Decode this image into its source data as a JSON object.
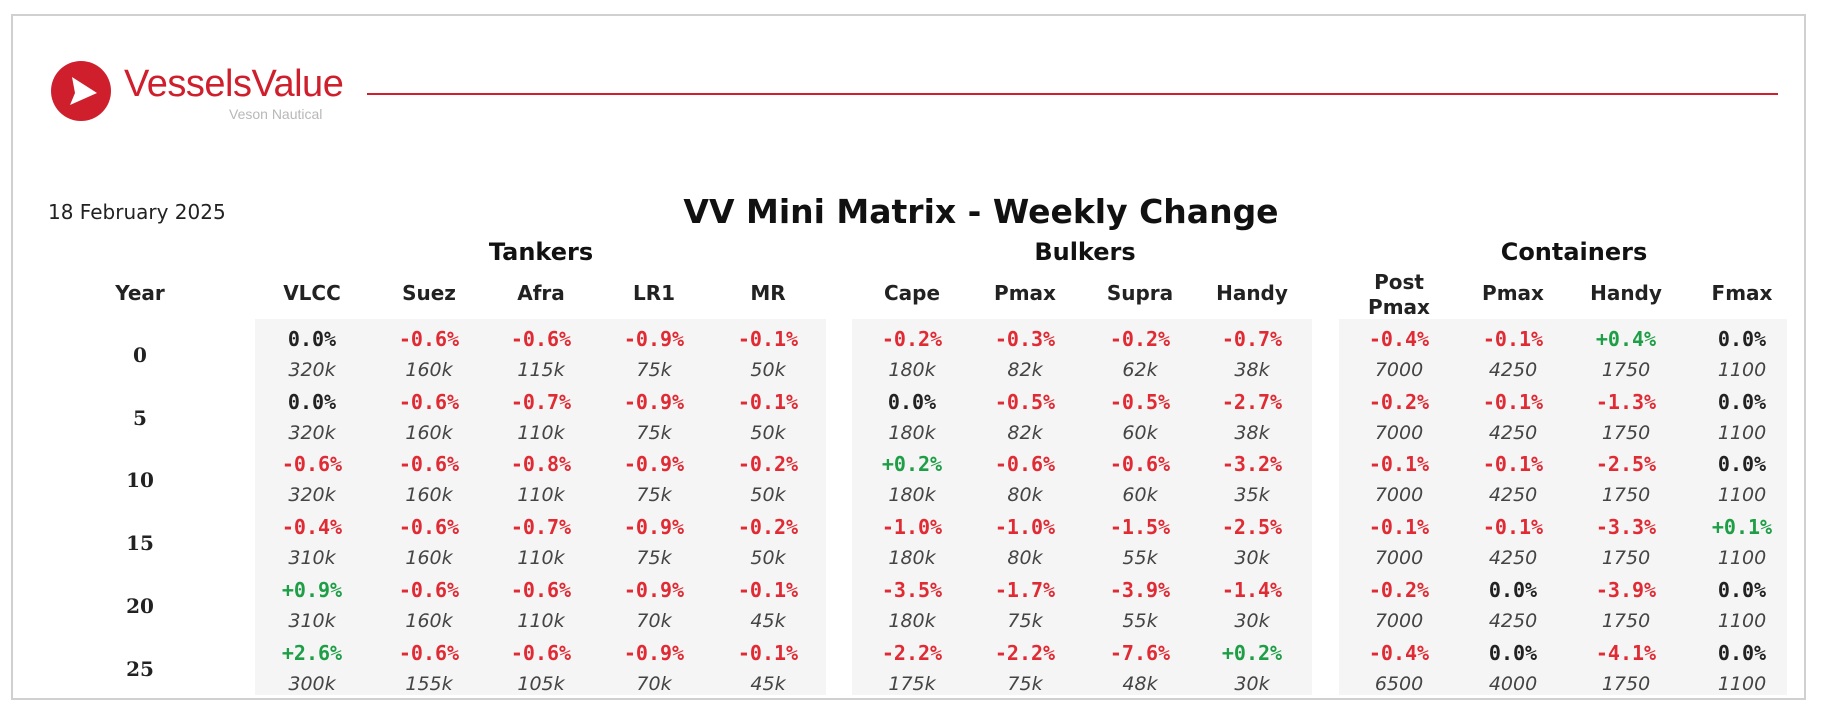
{
  "brand": {
    "name": "VesselsValue",
    "sub": "Veson Nautical",
    "color": "#cf1f2d"
  },
  "report": {
    "date": "18 February 2025",
    "title": "VV Mini Matrix - Weekly Change"
  },
  "colors": {
    "negative": "#e02a34",
    "positive": "#1e9e46",
    "neutral": "#222222",
    "rule": "#cf1f2d",
    "group_background": "#f5f5f5"
  },
  "table": {
    "year_header": "Year",
    "groups": [
      {
        "label": "Tankers",
        "columns": [
          "VLCC",
          "Suez",
          "Afra",
          "LR1",
          "MR"
        ]
      },
      {
        "label": "Bulkers",
        "columns": [
          "Cape",
          "Pmax",
          "Supra",
          "Handy"
        ]
      },
      {
        "label": "Containers",
        "columns": [
          "Post\nPmax",
          "Pmax",
          "Handy",
          "Fmax"
        ]
      }
    ],
    "rows": [
      {
        "year": "0",
        "changes": [
          "0.0%",
          "-0.6%",
          "-0.6%",
          "-0.9%",
          "-0.1%",
          "-0.2%",
          "-0.3%",
          "-0.2%",
          "-0.7%",
          "-0.4%",
          "-0.1%",
          "+0.4%",
          "0.0%"
        ],
        "sizes": [
          "320k",
          "160k",
          "115k",
          "75k",
          "50k",
          "180k",
          "82k",
          "62k",
          "38k",
          "7000",
          "4250",
          "1750",
          "1100"
        ]
      },
      {
        "year": "5",
        "changes": [
          "0.0%",
          "-0.6%",
          "-0.7%",
          "-0.9%",
          "-0.1%",
          "0.0%",
          "-0.5%",
          "-0.5%",
          "-2.7%",
          "-0.2%",
          "-0.1%",
          "-1.3%",
          "0.0%"
        ],
        "sizes": [
          "320k",
          "160k",
          "110k",
          "75k",
          "50k",
          "180k",
          "82k",
          "60k",
          "38k",
          "7000",
          "4250",
          "1750",
          "1100"
        ]
      },
      {
        "year": "10",
        "changes": [
          "-0.6%",
          "-0.6%",
          "-0.8%",
          "-0.9%",
          "-0.2%",
          "+0.2%",
          "-0.6%",
          "-0.6%",
          "-3.2%",
          "-0.1%",
          "-0.1%",
          "-2.5%",
          "0.0%"
        ],
        "sizes": [
          "320k",
          "160k",
          "110k",
          "75k",
          "50k",
          "180k",
          "80k",
          "60k",
          "35k",
          "7000",
          "4250",
          "1750",
          "1100"
        ]
      },
      {
        "year": "15",
        "changes": [
          "-0.4%",
          "-0.6%",
          "-0.7%",
          "-0.9%",
          "-0.2%",
          "-1.0%",
          "-1.0%",
          "-1.5%",
          "-2.5%",
          "-0.1%",
          "-0.1%",
          "-3.3%",
          "+0.1%"
        ],
        "sizes": [
          "310k",
          "160k",
          "110k",
          "75k",
          "50k",
          "180k",
          "80k",
          "55k",
          "30k",
          "7000",
          "4250",
          "1750",
          "1100"
        ]
      },
      {
        "year": "20",
        "changes": [
          "+0.9%",
          "-0.6%",
          "-0.6%",
          "-0.9%",
          "-0.1%",
          "-3.5%",
          "-1.7%",
          "-3.9%",
          "-1.4%",
          "-0.2%",
          "0.0%",
          "-3.9%",
          "0.0%"
        ],
        "sizes": [
          "310k",
          "160k",
          "110k",
          "70k",
          "45k",
          "180k",
          "75k",
          "55k",
          "30k",
          "7000",
          "4250",
          "1750",
          "1100"
        ]
      },
      {
        "year": "25",
        "changes": [
          "+2.6%",
          "-0.6%",
          "-0.6%",
          "-0.9%",
          "-0.1%",
          "-2.2%",
          "-2.2%",
          "-7.6%",
          "+0.2%",
          "-0.4%",
          "0.0%",
          "-4.1%",
          "0.0%"
        ],
        "sizes": [
          "300k",
          "155k",
          "105k",
          "70k",
          "45k",
          "175k",
          "75k",
          "48k",
          "30k",
          "6500",
          "4000",
          "1750",
          "1100"
        ]
      }
    ]
  }
}
